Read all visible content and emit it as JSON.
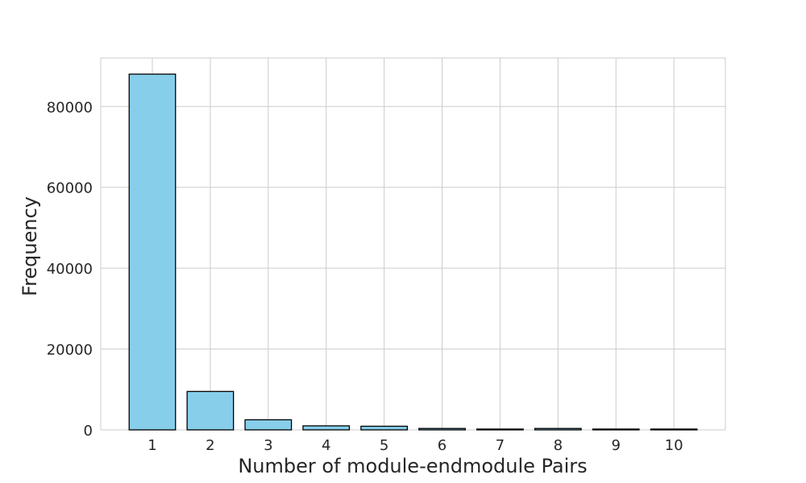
{
  "chart_data": {
    "type": "bar",
    "title": "",
    "xlabel": "Number of module-endmodule Pairs",
    "ylabel": "Frequency",
    "categories": [
      "1",
      "2",
      "3",
      "4",
      "5",
      "6",
      "7",
      "8",
      "9",
      "10"
    ],
    "values": [
      88000,
      9500,
      2500,
      1000,
      900,
      350,
      200,
      350,
      200,
      200
    ],
    "ylim": [
      0,
      92000
    ],
    "yticks": [
      0,
      20000,
      40000,
      60000,
      80000
    ],
    "ytick_labels": [
      "0",
      "20000",
      "40000",
      "60000",
      "80000"
    ],
    "grid": true,
    "colors": {
      "bar_fill": "#87ceeb",
      "bar_edge": "#000000",
      "grid": "#cccccc",
      "text": "#262626"
    }
  }
}
